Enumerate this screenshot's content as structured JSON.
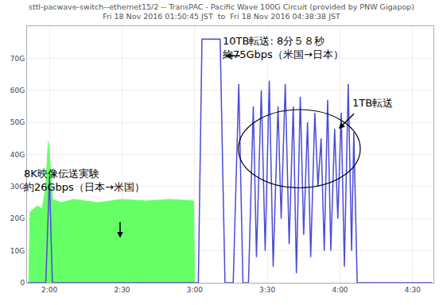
{
  "chart_data": {
    "type": "line",
    "title": "sttl-pacwave-switch--ethernet15/2 -- TransPAC - Pacific Wave 100G Circuit (provided by PNW Gigapop)",
    "subtitle": "Fri 18 Nov 2016 01:50:45 JST  to  Fri 18 Nov 2016 04:38:38 JST",
    "xlim": [
      110.75,
      278.6
    ],
    "xticks": [
      {
        "value": 120,
        "label": "2:00"
      },
      {
        "value": 150,
        "label": "2:30"
      },
      {
        "value": 180,
        "label": "3:00"
      },
      {
        "value": 210,
        "label": "3:30"
      },
      {
        "value": 240,
        "label": "4:00"
      },
      {
        "value": 270,
        "label": "4:30"
      }
    ],
    "ylim": [
      0,
      80
    ],
    "yticks": [
      0,
      {
        "value": 10,
        "label": "10G"
      },
      {
        "value": 20,
        "label": "20G"
      },
      {
        "value": 30,
        "label": "30G"
      },
      {
        "value": 40,
        "label": "40G"
      },
      {
        "value": 50,
        "label": "50G"
      },
      {
        "value": 60,
        "label": "60G"
      },
      {
        "value": 70,
        "label": "70G"
      }
    ],
    "grid": true,
    "series": [
      {
        "type": "area",
        "color": "#66ff66",
        "x": [
          111.5,
          112,
          115,
          117,
          118.5,
          119.5,
          120.5,
          121.3,
          125,
          130,
          140,
          150,
          160,
          170,
          179.5,
          180
        ],
        "values": [
          0,
          22,
          24,
          23,
          30,
          44,
          35,
          26,
          25,
          26,
          25,
          26,
          25.5,
          26,
          25.5,
          0
        ]
      },
      {
        "type": "line",
        "color": "#4b4bd6",
        "x": [
          111,
          118.5,
          120,
          121.2,
          181.5,
          183,
          186,
          190.5,
          192.5,
          195.9,
          198.2,
          199.9,
          202.2,
          204.2,
          205.5,
          207.5,
          209.1,
          210.8,
          212.4,
          214.4,
          215.7,
          217.4,
          219,
          220.7,
          222,
          223.6,
          225,
          226.6,
          227.9,
          229.6,
          230.9,
          232.2,
          233.5,
          234.9,
          236.2,
          237.8,
          239.1,
          240.5,
          241.8,
          243.4,
          244.8,
          245.7,
          247.1,
          278
        ],
        "values": [
          0,
          0,
          33,
          0,
          0,
          76,
          76,
          76,
          0,
          0,
          62,
          0,
          0,
          55,
          8,
          60,
          10,
          63,
          5,
          55,
          20,
          62,
          12,
          55,
          3,
          58,
          15,
          50,
          8,
          53,
          30,
          45,
          10,
          57,
          10,
          48,
          20,
          53,
          5,
          62,
          10,
          47,
          0,
          0
        ]
      }
    ],
    "annotations": [
      {
        "text": [
          "10TB転送: 8分５８秒",
          "約75Gbps（米国→日本）"
        ]
      },
      {
        "text": [
          "1TB転送"
        ]
      },
      {
        "text": [
          "8K映像伝送実験",
          "約26Gbps（日本→米国）"
        ]
      }
    ]
  }
}
